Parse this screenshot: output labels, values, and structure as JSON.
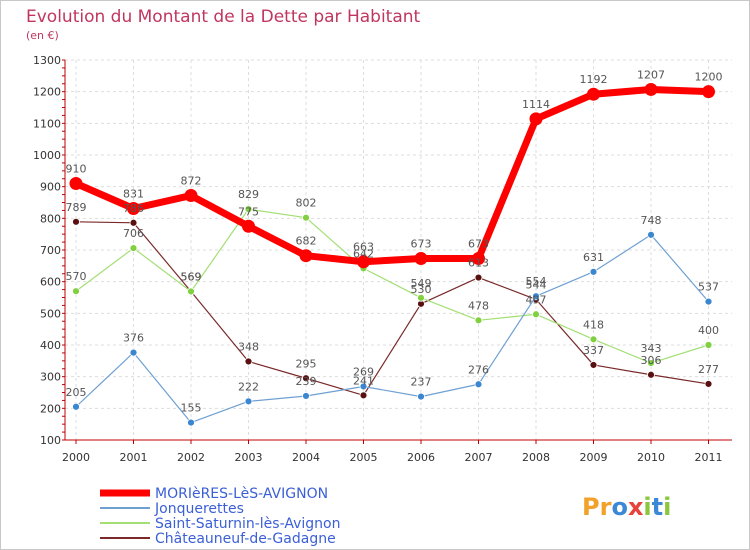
{
  "chart_data": {
    "type": "line",
    "title": "Evolution du Montant de la Dette par Habitant",
    "subtitle": "(en €)",
    "xlabel": "",
    "ylabel": "",
    "x": [
      "2000",
      "2001",
      "2002",
      "2003",
      "2004",
      "2005",
      "2006",
      "2007",
      "2008",
      "2009",
      "2010",
      "2011"
    ],
    "ylim": [
      100,
      1300
    ],
    "yticks": [
      100,
      200,
      300,
      400,
      500,
      600,
      700,
      800,
      900,
      1000,
      1100,
      1200,
      1300
    ],
    "grid": true,
    "legend_position": "bottom-left",
    "series": [
      {
        "name": "MORIèRES-LèS-AVIGNON",
        "color": "#ff0000",
        "dot": "#ff0000",
        "width": 7,
        "marker": 6.5,
        "values": [
          910,
          831,
          872,
          775,
          682,
          663,
          673,
          673,
          1114,
          1192,
          1207,
          1200
        ],
        "labels": [
          "910",
          "831",
          "872",
          "",
          "682",
          "663",
          "673",
          "673",
          "1114",
          "1192",
          "1207",
          "1200"
        ]
      },
      {
        "name": "Jonquerettes",
        "color": "#6ea0d2",
        "dot": "#3a86d0",
        "width": 1.2,
        "marker": 3.5,
        "values": [
          205,
          376,
          155,
          222,
          239,
          269,
          237,
          276,
          554,
          631,
          748,
          537
        ],
        "labels": [
          "205",
          "376",
          "155",
          "222",
          "239",
          "269",
          "237",
          "276",
          "554",
          "631",
          "748",
          "537"
        ]
      },
      {
        "name": "Saint-Saturnin-lès-Avignon",
        "color": "#a3df75",
        "dot": "#80d040",
        "width": 1.2,
        "marker": 3.5,
        "values": [
          570,
          706,
          569,
          829,
          802,
          642,
          549,
          478,
          497,
          418,
          343,
          400
        ],
        "labels": [
          "570",
          "706",
          "569",
          "829",
          "802",
          "642",
          "549",
          "478",
          "497",
          "418",
          "343",
          "400"
        ]
      },
      {
        "name": "Châteauneuf-de-Gadagne",
        "color": "#7a2a2a",
        "dot": "#5a1010",
        "width": 1.2,
        "marker": 3.5,
        "values": [
          789,
          786,
          569,
          348,
          295,
          241,
          530,
          613,
          544,
          337,
          306,
          277
        ],
        "labels": [
          "789",
          "786",
          "569",
          "348",
          "295",
          "241",
          "530",
          "613",
          "544",
          "337",
          "306",
          "277"
        ]
      }
    ],
    "extra_labels": [
      {
        "text": "775",
        "x": "2003",
        "y": 775
      }
    ]
  },
  "logo": {
    "text": "Proxiti",
    "letters": [
      "P",
      "r",
      "o",
      "x",
      "i",
      "t",
      "i"
    ],
    "colors": [
      "#f2a22b",
      "#f2a22b",
      "#3b88d6",
      "#e8423c",
      "#8cc63f",
      "#3b88d6",
      "#8cc63f"
    ]
  }
}
